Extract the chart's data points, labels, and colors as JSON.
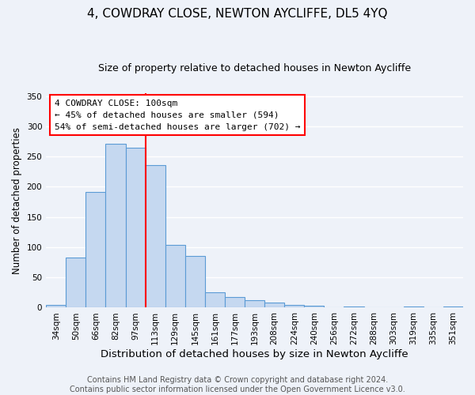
{
  "title": "4, COWDRAY CLOSE, NEWTON AYCLIFFE, DL5 4YQ",
  "subtitle": "Size of property relative to detached houses in Newton Aycliffe",
  "xlabel": "Distribution of detached houses by size in Newton Aycliffe",
  "ylabel": "Number of detached properties",
  "bar_labels": [
    "34sqm",
    "50sqm",
    "66sqm",
    "82sqm",
    "97sqm",
    "113sqm",
    "129sqm",
    "145sqm",
    "161sqm",
    "177sqm",
    "193sqm",
    "208sqm",
    "224sqm",
    "240sqm",
    "256sqm",
    "272sqm",
    "288sqm",
    "303sqm",
    "319sqm",
    "335sqm",
    "351sqm"
  ],
  "bar_values": [
    5,
    83,
    192,
    271,
    265,
    236,
    104,
    85,
    26,
    17,
    13,
    8,
    5,
    3,
    0,
    2,
    0,
    0,
    2,
    0,
    2
  ],
  "bar_color": "#c5d8f0",
  "bar_edge_color": "#5b9bd5",
  "vline_x_idx": 4,
  "vline_color": "red",
  "annotation_title": "4 COWDRAY CLOSE: 100sqm",
  "annotation_line1": "← 45% of detached houses are smaller (594)",
  "annotation_line2": "54% of semi-detached houses are larger (702) →",
  "annotation_box_color": "white",
  "annotation_box_edge": "red",
  "ylim": [
    0,
    355
  ],
  "yticks": [
    0,
    50,
    100,
    150,
    200,
    250,
    300,
    350
  ],
  "footer1": "Contains HM Land Registry data © Crown copyright and database right 2024.",
  "footer2": "Contains public sector information licensed under the Open Government Licence v3.0.",
  "background_color": "#eef2f9",
  "grid_color": "white",
  "title_fontsize": 11,
  "subtitle_fontsize": 9,
  "xlabel_fontsize": 9.5,
  "ylabel_fontsize": 8.5,
  "tick_fontsize": 7.5,
  "annotation_fontsize": 8,
  "footer_fontsize": 7
}
